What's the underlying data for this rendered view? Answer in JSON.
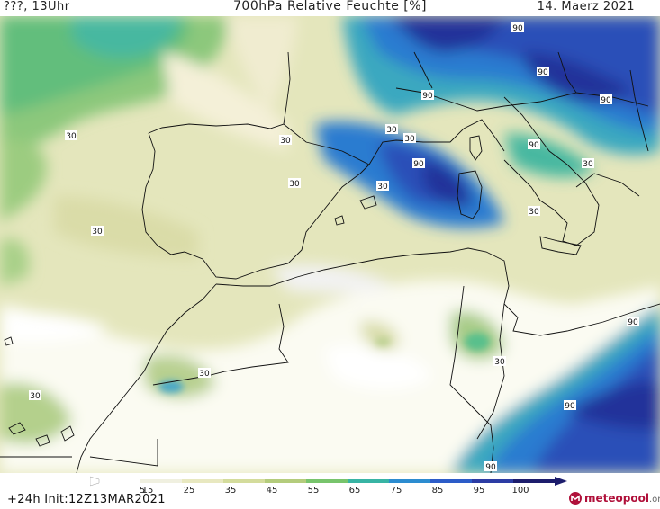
{
  "header": {
    "left": "???, 13Uhr",
    "title": "700hPa Relative Feuchte [%]",
    "date": "14. Maerz 2021"
  },
  "colorbar": {
    "labels": [
      "5",
      "15",
      "25",
      "35",
      "45",
      "55",
      "65",
      "75",
      "85",
      "95",
      "100"
    ],
    "colors": [
      "#ffffff",
      "#f0f0e0",
      "#e8e8c0",
      "#d4dc9c",
      "#b4cc7c",
      "#78c46c",
      "#38b4a4",
      "#2c8cd0",
      "#2c5cc8",
      "#2c3ca4",
      "#1c1c6c"
    ]
  },
  "footer": {
    "init": "+24h  Init:12Z13MAR2021",
    "logo": "meteopool",
    "logo_suffix": ".org"
  },
  "contours": [
    "30",
    "30",
    "30",
    "30",
    "30",
    "30",
    "30",
    "30",
    "30",
    "30",
    "30",
    "30",
    "90",
    "90",
    "90",
    "90",
    "90",
    "90",
    "90",
    "90",
    "90"
  ]
}
